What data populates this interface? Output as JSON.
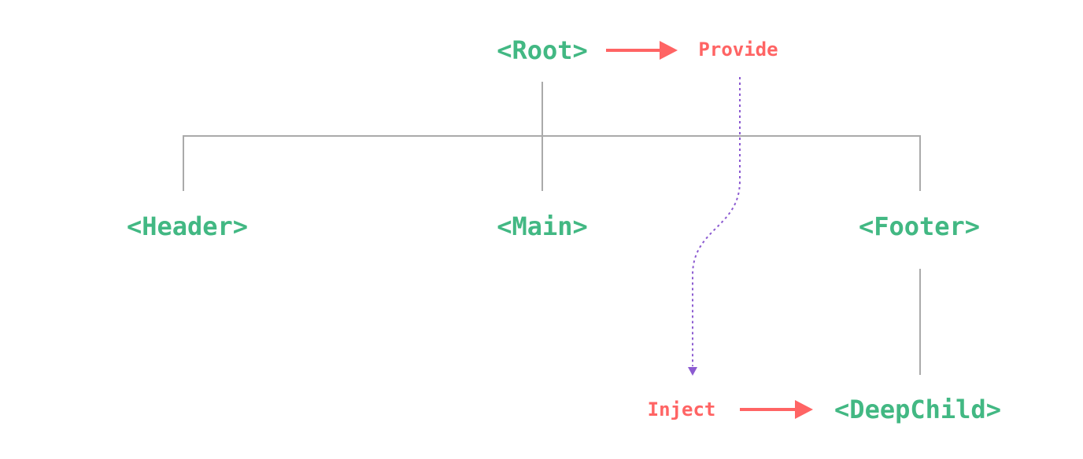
{
  "nodes": {
    "root": "<Root>",
    "header": "<Header>",
    "main": "<Main>",
    "footer": "<Footer>",
    "deep_child": "<DeepChild>"
  },
  "labels": {
    "provide": "Provide",
    "inject": "Inject"
  },
  "colors": {
    "node": "#42b883",
    "label": "#ff6464",
    "tree_line": "#aaaaaa",
    "injection_path": "#8c5bd1"
  }
}
